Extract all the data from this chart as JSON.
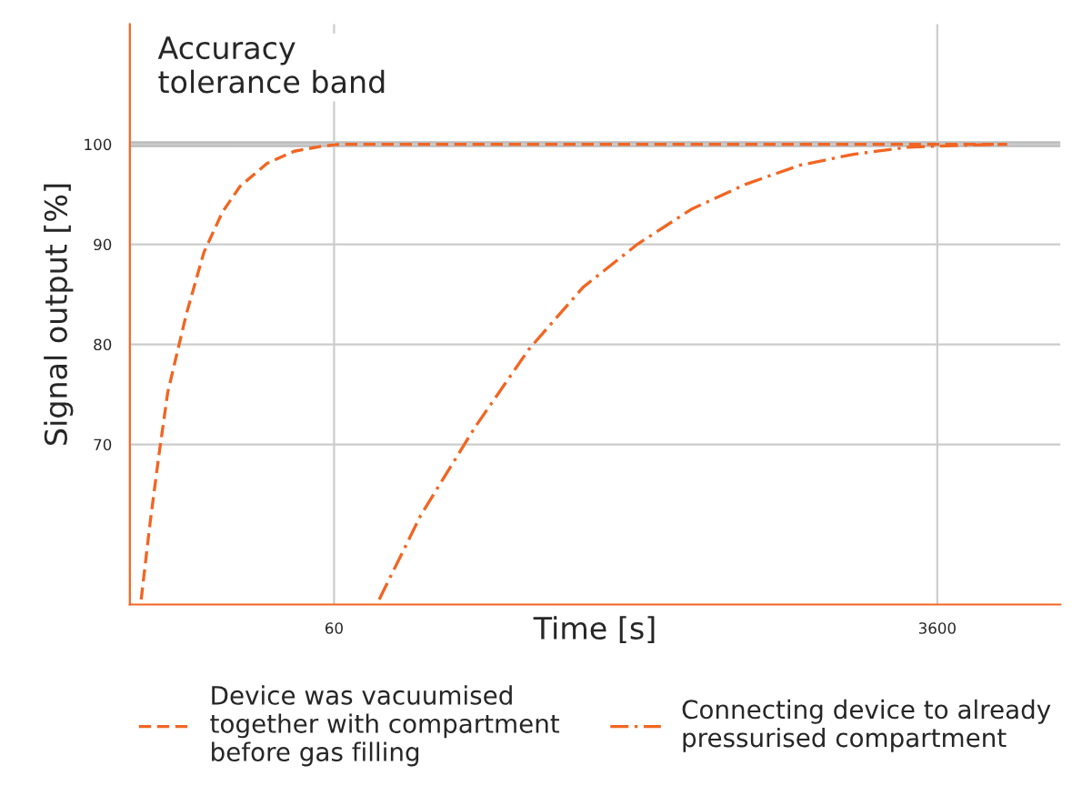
{
  "chart_data": {
    "type": "line",
    "xlabel": "Time [s]",
    "ylabel": "Signal output [%]",
    "log": "x",
    "xlim": [
      15,
      8300
    ],
    "xticks": [
      60,
      3600
    ],
    "ylim": [
      54,
      112
    ],
    "yticks": [
      70,
      80,
      90,
      100
    ],
    "grid": true,
    "legend": "bottom",
    "marker": "none",
    "series": [
      {
        "name": "Device was vacuumised\ntogether with compartment\nbefore gas filling",
        "color": "#f26522",
        "line_style": "dashed",
        "x": [
          16.2,
          17.2,
          18.3,
          19.4,
          22.0,
          24.8,
          28.1,
          31.7,
          38.1,
          45.8,
          55.1,
          62.2,
          5780
        ],
        "values": [
          54.5,
          62.1,
          69.1,
          75.2,
          83.0,
          89.2,
          93.2,
          95.8,
          98.1,
          99.3,
          99.8,
          100,
          100
        ]
      },
      {
        "name": "Connecting device to already\npressurised compartment",
        "color": "#f26522",
        "line_style": "dashdot",
        "x": [
          81.5,
          108,
          156,
          225,
          325,
          470,
          678,
          980,
          1414,
          2040,
          2945,
          4250,
          5780
        ],
        "values": [
          54.5,
          62.9,
          71.7,
          79.5,
          85.7,
          90.0,
          93.5,
          96.0,
          97.9,
          99.0,
          99.7,
          99.9,
          100
        ]
      }
    ],
    "bands": [
      {
        "axis": "y",
        "from": 99.7,
        "to": 100.3,
        "label": "Accuracy\ntolerance band",
        "color": "#bbbbbb"
      }
    ]
  }
}
